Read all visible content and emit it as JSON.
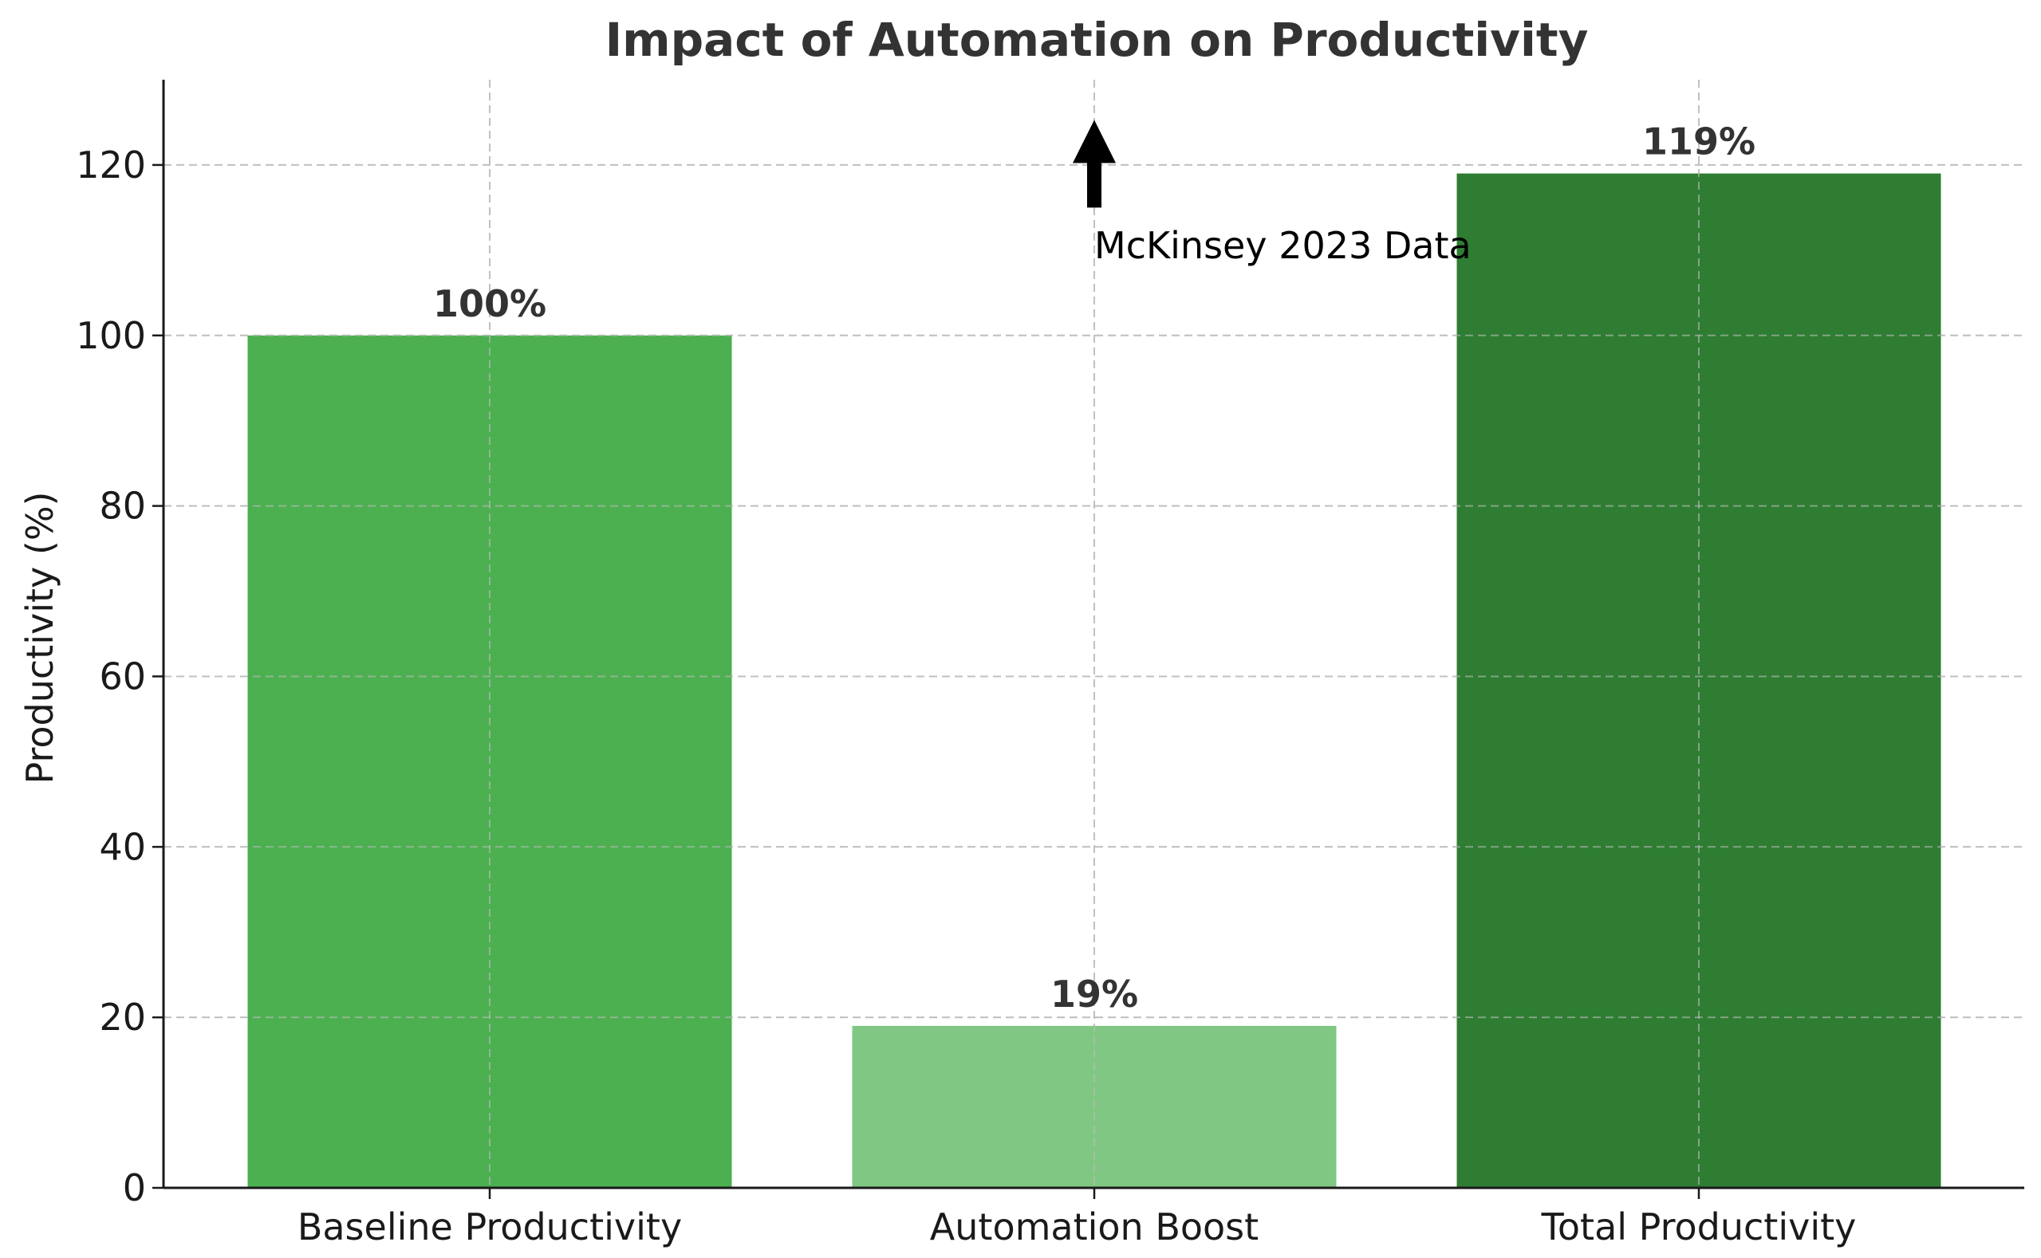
{
  "chart_data": {
    "type": "bar",
    "title": "Impact of Automation on Productivity",
    "xlabel": "",
    "ylabel": "Productivity (%)",
    "categories": [
      "Baseline Productivity",
      "Automation Boost",
      "Total Productivity"
    ],
    "values": [
      100,
      19,
      119
    ],
    "value_labels": [
      "100%",
      "19%",
      "119%"
    ],
    "colors": [
      "#4caf50",
      "#81c784",
      "#2e7d32"
    ],
    "ylim": [
      0,
      130
    ],
    "yticks": [
      0,
      20,
      40,
      60,
      80,
      100,
      120
    ],
    "grid": true,
    "annotation": {
      "text": "McKinsey 2023 Data",
      "arrow_target_category": "Automation Boost",
      "arrow_target_value": 125,
      "text_value": 110
    }
  }
}
